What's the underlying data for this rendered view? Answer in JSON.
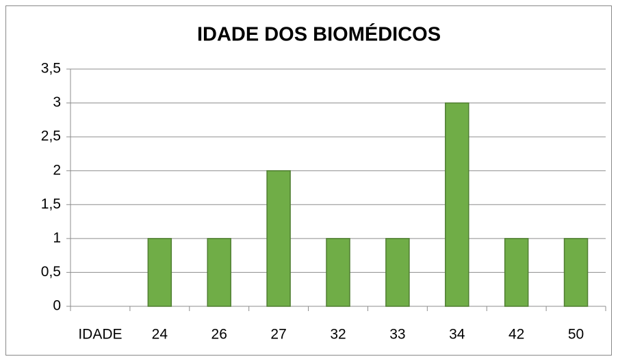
{
  "chart_data": {
    "type": "bar",
    "title": "IDADE DOS BIOMÉDICOS",
    "categories": [
      "IDADE",
      "24",
      "26",
      "27",
      "32",
      "33",
      "34",
      "42",
      "50"
    ],
    "values": [
      null,
      1,
      1,
      2,
      1,
      1,
      3,
      1,
      1
    ],
    "color": "#70ad47",
    "ylim": [
      0,
      3.5
    ],
    "yticks": [
      0,
      {
        "value": 0.5,
        "label": "0,5"
      },
      1,
      {
        "value": 1.5,
        "label": "1,5"
      },
      2,
      {
        "value": 2.5,
        "label": "2,5"
      },
      3,
      {
        "value": 3.5,
        "label": "3,5"
      }
    ],
    "grid": true
  }
}
